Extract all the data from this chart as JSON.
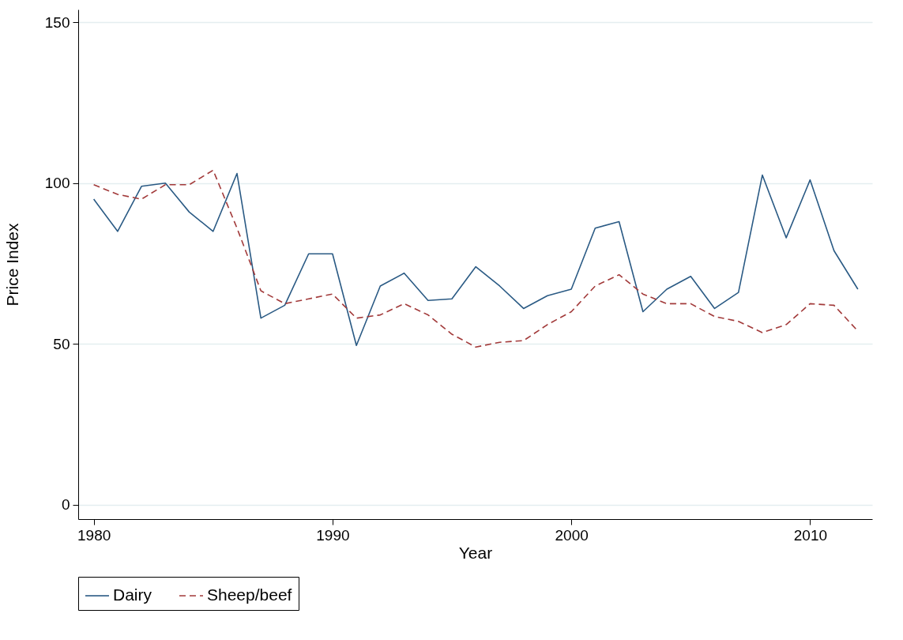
{
  "chart_data": {
    "type": "line",
    "xlabel": "Year",
    "ylabel": "Price Index",
    "x": [
      1980,
      1981,
      1982,
      1983,
      1984,
      1985,
      1986,
      1987,
      1988,
      1989,
      1990,
      1991,
      1992,
      1993,
      1994,
      1995,
      1996,
      1997,
      1998,
      1999,
      2000,
      2001,
      2002,
      2003,
      2004,
      2005,
      2006,
      2007,
      2008,
      2009,
      2010,
      2011,
      2012
    ],
    "series": [
      {
        "name": "Dairy",
        "color": "#2a5a84",
        "line_style": "solid",
        "values": [
          95,
          85,
          99,
          100,
          91,
          85,
          103,
          58,
          62,
          78,
          78,
          49.5,
          68,
          72,
          63.5,
          64,
          74,
          68,
          61,
          65,
          67,
          86,
          88,
          60,
          67,
          71,
          61,
          66,
          102.5,
          83,
          101,
          79,
          67
        ]
      },
      {
        "name": "Sheep/beef",
        "color": "#a23a3a",
        "line_style": "dashed",
        "values": [
          99.5,
          96.5,
          95,
          99.5,
          99.5,
          104,
          86,
          66.5,
          62.5,
          64,
          65.5,
          58,
          59,
          62.5,
          59,
          53,
          49,
          50.5,
          51,
          56,
          60,
          68,
          71.5,
          65.5,
          62.5,
          62.5,
          58.5,
          57,
          53.5,
          56,
          62.5,
          62,
          54
        ]
      }
    ],
    "xlim": [
      1979.35,
      2012.6
    ],
    "xticks": [
      1980,
      1990,
      2000,
      2010
    ],
    "ylim": [
      -4.5,
      154
    ],
    "yticks": [
      0,
      50,
      100,
      150
    ],
    "grid": "y",
    "legend": "bottom",
    "marker": "none"
  }
}
